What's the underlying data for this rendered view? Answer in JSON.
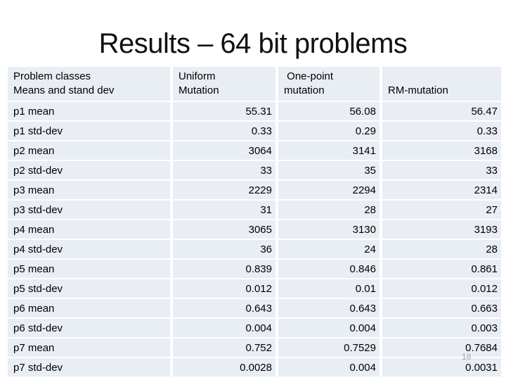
{
  "slide": {
    "title": "Results – 64 bit problems",
    "page_number": "18"
  },
  "colors": {
    "cell_background": "#e9edf4",
    "grid_gap": "#ffffff",
    "text": "#000000",
    "title_text": "#111111",
    "page_number_text": "#a6a6a6"
  },
  "table": {
    "columns": [
      {
        "name": "problem-classes",
        "lines": [
          "Problem classes",
          "Means and stand dev"
        ]
      },
      {
        "name": "uniform-mutation",
        "lines": [
          "Uniform",
          "Mutation"
        ]
      },
      {
        "name": "one-point-mutation",
        "lines": [
          " One-point",
          "mutation"
        ]
      },
      {
        "name": "rm-mutation",
        "lines": [
          "",
          "RM-mutation"
        ]
      }
    ],
    "rows": [
      {
        "label": "p1 mean",
        "values": [
          "55.31",
          "56.08",
          "56.47"
        ]
      },
      {
        "label": "p1 std-dev",
        "values": [
          "0.33",
          "0.29",
          "0.33"
        ]
      },
      {
        "label": "p2 mean",
        "values": [
          "3064",
          "3141",
          "3168"
        ]
      },
      {
        "label": "p2 std-dev",
        "values": [
          "33",
          "35",
          "33"
        ]
      },
      {
        "label": "p3 mean",
        "values": [
          "2229",
          "2294",
          "2314"
        ]
      },
      {
        "label": "p3 std-dev",
        "values": [
          "31",
          "28",
          "27"
        ]
      },
      {
        "label": "p4 mean",
        "values": [
          "3065",
          "3130",
          "3193"
        ]
      },
      {
        "label": "p4 std-dev",
        "values": [
          "36",
          "24",
          "28"
        ]
      },
      {
        "label": "p5 mean",
        "values": [
          "0.839",
          "0.846",
          "0.861"
        ]
      },
      {
        "label": "p5 std-dev",
        "values": [
          "0.012",
          "0.01",
          "0.012"
        ]
      },
      {
        "label": "p6 mean",
        "values": [
          "0.643",
          "0.643",
          "0.663"
        ]
      },
      {
        "label": "p6 std-dev",
        "values": [
          "0.004",
          "0.004",
          "0.003"
        ]
      },
      {
        "label": "p7 mean",
        "values": [
          "0.752",
          "0.7529",
          "0.7684"
        ]
      },
      {
        "label": "p7 std-dev",
        "values": [
          "0.0028",
          "0.004",
          "0.0031"
        ]
      }
    ]
  }
}
